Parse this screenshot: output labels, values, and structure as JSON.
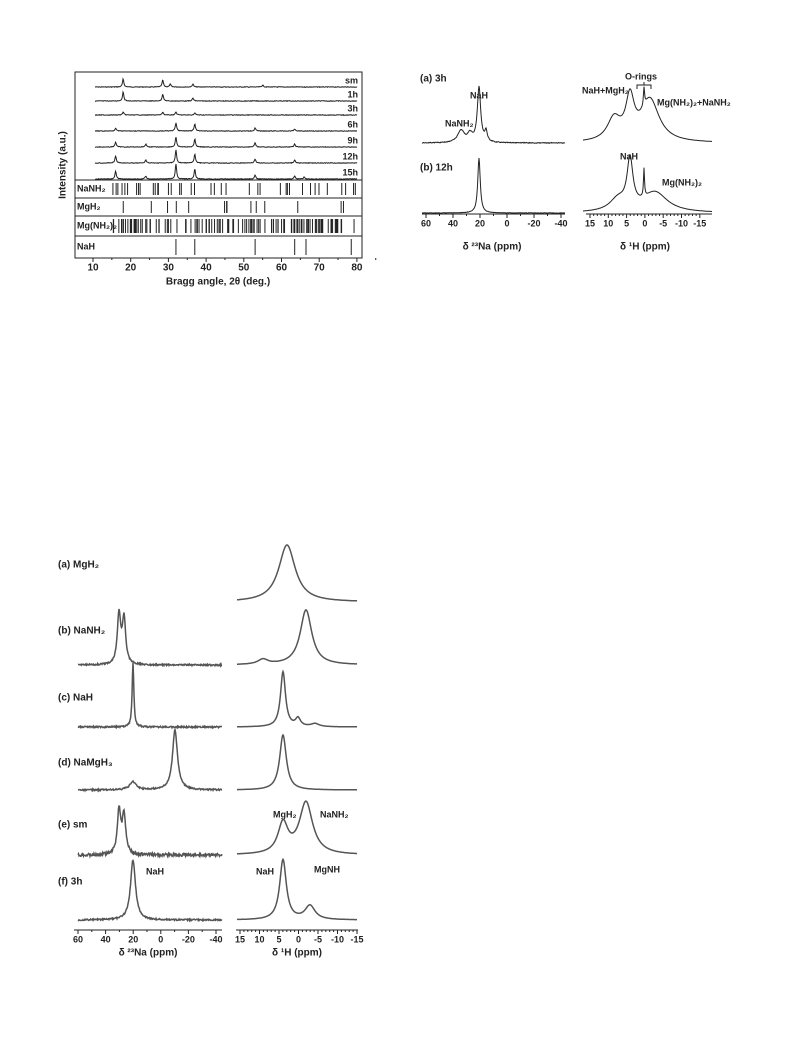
{
  "figure1": {
    "y_label": "Intensity (a.u.)",
    "x_label": "Bragg angle, 2θ (deg.)",
    "x_ticks": [
      "10",
      "20",
      "30",
      "40",
      "50",
      "60",
      "70",
      "80"
    ],
    "samples": [
      "sm",
      "1h",
      "3h",
      "6h",
      "9h",
      "12h",
      "15h"
    ],
    "references": [
      "NaNH₂",
      "MgH₂",
      "Mg(NH₂)₂",
      "NaH"
    ]
  },
  "figure2": {
    "panels": [
      "(a) 3h",
      "(b) 12h"
    ],
    "na_ticks": [
      "60",
      "40",
      "20",
      "0",
      "-20",
      "-40"
    ],
    "h_ticks": [
      "15",
      "10",
      "5",
      "0",
      "-5",
      "-10",
      "-15"
    ],
    "na_axis_label": "δ ²³Na (ppm)",
    "h_axis_label": "δ ¹H (ppm)",
    "annotations": [
      "NaH",
      "NaNH₂",
      "NaH+MgH₂",
      "O-rings",
      "Mg(NH₂)₂+NaNH₂",
      "NaH",
      "Mg(NH₂)₂"
    ]
  },
  "figure3": {
    "panels": [
      "(a) MgH₂",
      "(b) NaNH₂",
      "(c) NaH",
      "(d) NaMgH₃",
      "(e) sm",
      "(f) 3h"
    ],
    "na_ticks": [
      "60",
      "40",
      "20",
      "0",
      "-20",
      "-40"
    ],
    "h_ticks": [
      "15",
      "10",
      "5",
      "0",
      "-5",
      "-10",
      "-15"
    ],
    "na_axis_label": "δ ²³Na (ppm)",
    "h_axis_label": "δ ¹H (ppm)",
    "annotations": [
      "MgH₂",
      "NaNH₂",
      "NaH",
      "NaH",
      "MgNH"
    ]
  }
}
